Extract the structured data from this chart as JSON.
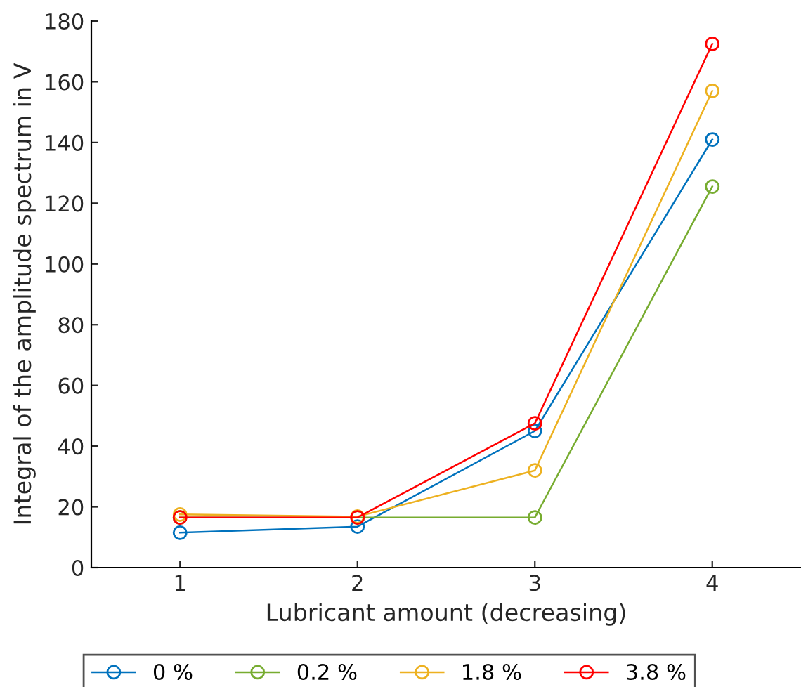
{
  "chart_data": {
    "type": "line",
    "xlabel": "Lubricant amount (decreasing)",
    "ylabel": "Integral of the amplitude spectrum in V",
    "x": [
      1,
      2,
      3,
      4
    ],
    "xlim": [
      0.5,
      4.5
    ],
    "xticks": [
      1,
      2,
      3,
      4
    ],
    "ylim": [
      0,
      180
    ],
    "yticks": [
      0,
      20,
      40,
      60,
      80,
      100,
      120,
      140,
      160,
      180
    ],
    "marker": "circle",
    "line_style": "solid",
    "grid": false,
    "legend": "bottom",
    "series": [
      {
        "name": "0 %",
        "color": "#0072bd",
        "values": [
          11.5,
          13.5,
          45,
          141
        ]
      },
      {
        "name": "0.2 %",
        "color": "#77ac30",
        "values": [
          16.5,
          16.5,
          16.5,
          125.5
        ]
      },
      {
        "name": "1.8 %",
        "color": "#edb120",
        "values": [
          17.5,
          16.8,
          32,
          157
        ]
      },
      {
        "name": "3.8 %",
        "color": "#ff0000",
        "values": [
          16.5,
          16.5,
          47.5,
          172.5
        ]
      }
    ]
  }
}
